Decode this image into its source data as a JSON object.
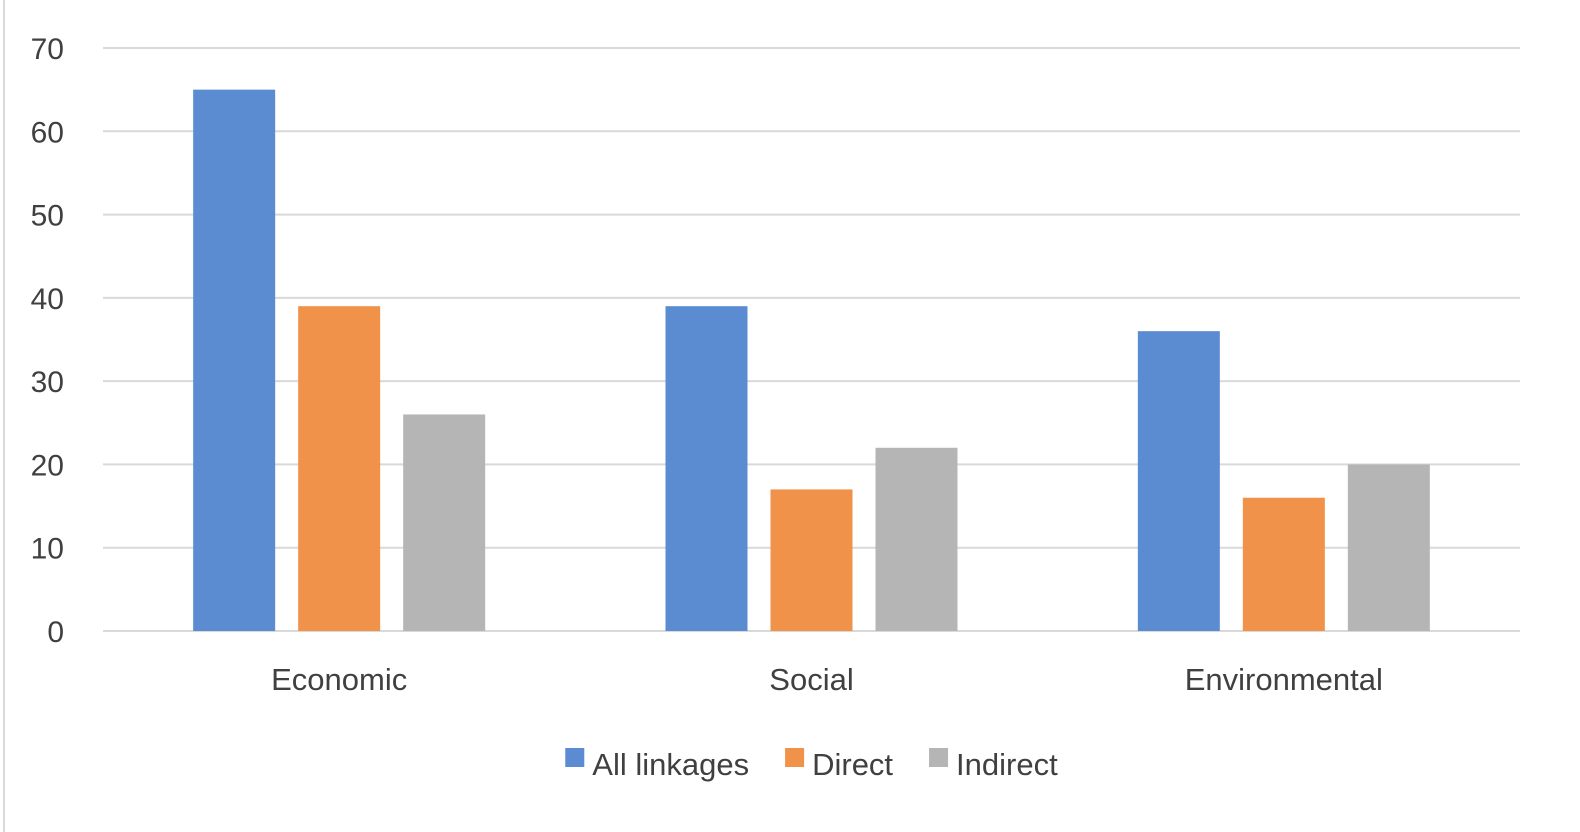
{
  "chart_data": {
    "type": "bar",
    "categories": [
      "Economic",
      "Social",
      "Environmental"
    ],
    "series": [
      {
        "name": "All linkages",
        "values": [
          65,
          39,
          36
        ],
        "color": "#5B8BD0"
      },
      {
        "name": "Direct",
        "values": [
          39,
          17,
          16
        ],
        "color": "#F0924A"
      },
      {
        "name": "Indirect",
        "values": [
          26,
          22,
          20
        ],
        "color": "#B5B5B5"
      }
    ],
    "yticks": [
      "0",
      "10",
      "20",
      "30",
      "40",
      "50",
      "60",
      "70"
    ],
    "ylim": [
      0,
      70
    ],
    "grid": true,
    "legend_position": "bottom",
    "title": "",
    "xlabel": "",
    "ylabel": ""
  }
}
